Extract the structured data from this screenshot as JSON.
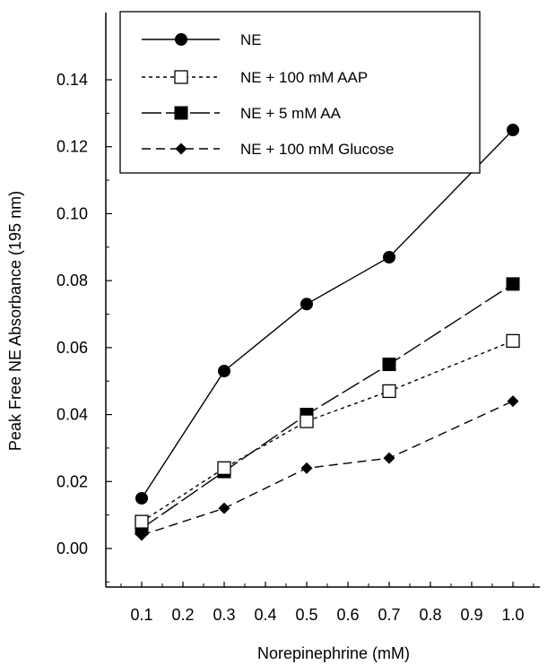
{
  "chart_data": {
    "type": "line",
    "title": "",
    "xlabel": "Norepinephrine (mM)",
    "ylabel": "Peak Free NE Absorbance (195 nm)",
    "xlim": [
      0.0,
      1.05
    ],
    "ylim": [
      -0.01,
      0.14
    ],
    "x_ticks": [
      0.1,
      0.2,
      0.3,
      0.4,
      0.5,
      0.6,
      0.7,
      0.8,
      0.9,
      1.0
    ],
    "x_tick_labels": [
      "0.1",
      "0.2",
      "0.3",
      "0.4",
      "0.5",
      "0.6",
      "0.7",
      "0.8",
      "0.9",
      "1.0"
    ],
    "y_ticks": [
      0.0,
      0.02,
      0.04,
      0.06,
      0.08,
      0.1,
      0.12,
      0.14
    ],
    "y_tick_labels": [
      "0.00",
      "0.02",
      "0.04",
      "0.06",
      "0.08",
      "0.10",
      "0.12",
      "0.14"
    ],
    "grid": false,
    "legend_position": "top-center",
    "x": [
      0.1,
      0.3,
      0.5,
      0.7,
      1.0
    ],
    "series": [
      {
        "name": "NE",
        "values": [
          0.015,
          0.053,
          0.073,
          0.087,
          0.125
        ],
        "marker": "filled-circle",
        "line": "solid"
      },
      {
        "name": "NE + 100 mM AAP",
        "values": [
          0.008,
          0.024,
          0.038,
          0.047,
          0.062
        ],
        "marker": "open-square",
        "line": "dotted"
      },
      {
        "name": "NE + 5 mM AA",
        "values": [
          0.006,
          0.023,
          0.04,
          0.055,
          0.079
        ],
        "marker": "filled-square",
        "line": "long-dash"
      },
      {
        "name": "NE + 100 mM Glucose",
        "values": [
          0.004,
          0.012,
          0.024,
          0.027,
          0.044
        ],
        "marker": "filled-diamond",
        "line": "dashed"
      }
    ]
  }
}
